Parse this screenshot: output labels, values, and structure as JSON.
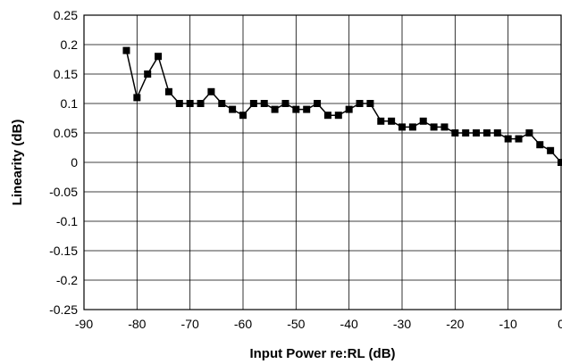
{
  "chart_data": {
    "type": "line",
    "title": "",
    "xlabel": "Input Power re:RL (dB)",
    "ylabel": "Linearity (dB)",
    "xlim": [
      -90,
      0
    ],
    "ylim": [
      -0.25,
      0.25
    ],
    "x_ticks": [
      -90,
      -80,
      -70,
      -60,
      -50,
      -40,
      -30,
      -20,
      -10,
      0
    ],
    "y_ticks": [
      0.25,
      0.2,
      0.15,
      0.1,
      0.05,
      0,
      -0.05,
      -0.1,
      -0.15,
      -0.2,
      -0.25
    ],
    "x_tick_labels": [
      "-90",
      "-80",
      "-70",
      "-60",
      "-50",
      "-40",
      "-30",
      "-20",
      "-10",
      "0"
    ],
    "y_tick_labels": [
      "0.25",
      "0.2",
      "0.15",
      "0.1",
      "0.05",
      "0",
      "-0.05",
      "-0.1",
      "-0.15",
      "-0.2",
      "-0.25"
    ],
    "grid": true,
    "marker": "square",
    "series": [
      {
        "x": [
          -82,
          -80,
          -78,
          -76,
          -74,
          -72,
          -70,
          -68,
          -66,
          -64,
          -62,
          -60,
          -58,
          -56,
          -54,
          -52,
          -50,
          -48,
          -46,
          -44,
          -42,
          -40,
          -38,
          -36,
          -34,
          -32,
          -30,
          -28,
          -26,
          -24,
          -22,
          -20,
          -18,
          -16,
          -14,
          -12,
          -10,
          -8,
          -6,
          -4,
          -2,
          0
        ],
        "y": [
          0.19,
          0.11,
          0.15,
          0.18,
          0.12,
          0.1,
          0.1,
          0.1,
          0.12,
          0.1,
          0.09,
          0.08,
          0.1,
          0.1,
          0.09,
          0.1,
          0.09,
          0.09,
          0.1,
          0.08,
          0.08,
          0.09,
          0.1,
          0.1,
          0.07,
          0.07,
          0.06,
          0.06,
          0.07,
          0.06,
          0.06,
          0.05,
          0.05,
          0.05,
          0.05,
          0.05,
          0.04,
          0.04,
          0.05,
          0.03,
          0.02,
          0.0
        ]
      }
    ]
  }
}
